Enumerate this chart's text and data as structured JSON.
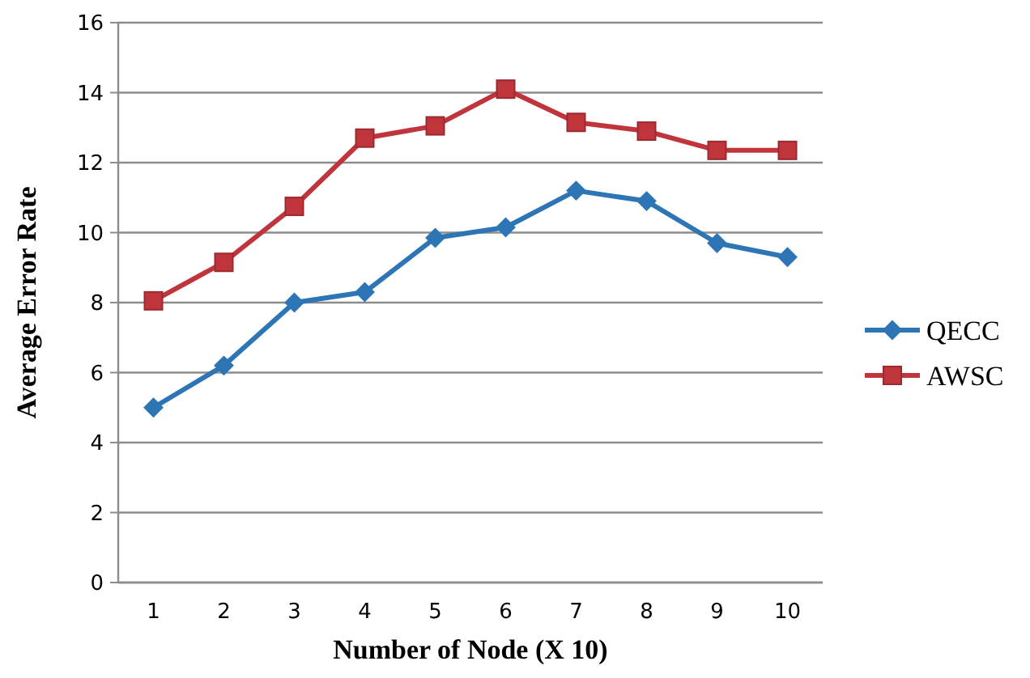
{
  "chart_data": {
    "type": "line",
    "xlabel": "Number of Node (X 10)",
    "ylabel": "Average Error Rate",
    "categories": [
      "1",
      "2",
      "3",
      "4",
      "5",
      "6",
      "7",
      "8",
      "9",
      "10"
    ],
    "series": [
      {
        "name": "QECC",
        "color": "#2e75b6",
        "marker": "diamond",
        "values": [
          5,
          6.2,
          8,
          8.3,
          9.85,
          10.15,
          11.2,
          10.9,
          9.7,
          9.3
        ]
      },
      {
        "name": "AWSC",
        "color": "#c0343c",
        "marker": "square",
        "values": [
          8.05,
          9.15,
          10.75,
          12.7,
          13.05,
          14.1,
          13.15,
          12.9,
          12.35,
          12.35
        ]
      }
    ],
    "ylim": [
      0,
      16
    ],
    "yticks": [
      0,
      2,
      4,
      6,
      8,
      10,
      12,
      14,
      16
    ],
    "grid": "y",
    "legend": "right"
  }
}
